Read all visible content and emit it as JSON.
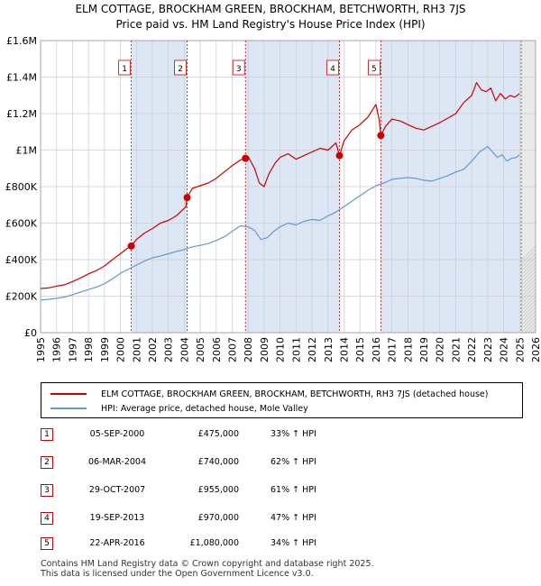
{
  "title_line1": "ELM COTTAGE, BROCKHAM GREEN, BROCKHAM, BETCHWORTH, RH3 7JS",
  "title_line2": "Price paid vs. HM Land Registry's House Price Index (HPI)",
  "colors": {
    "property": "#cc0000",
    "hpi": "#6699cc",
    "shade": "#dde6f4",
    "future": "#e9e9e9",
    "grid": "#cccccc"
  },
  "legend": {
    "property_label": "ELM COTTAGE, BROCKHAM GREEN, BROCKHAM, BETCHWORTH, RH3 7JS (detached house)",
    "hpi_label": "HPI: Average price, detached house, Mole Valley"
  },
  "sales": [
    {
      "num": "1",
      "date": "05-SEP-2000",
      "price": "£475,000",
      "hpi": "33% ↑ HPI"
    },
    {
      "num": "2",
      "date": "06-MAR-2004",
      "price": "£740,000",
      "hpi": "62% ↑ HPI"
    },
    {
      "num": "3",
      "date": "29-OCT-2007",
      "price": "£955,000",
      "hpi": "61% ↑ HPI"
    },
    {
      "num": "4",
      "date": "19-SEP-2013",
      "price": "£970,000",
      "hpi": "47% ↑ HPI"
    },
    {
      "num": "5",
      "date": "22-APR-2016",
      "price": "£1,080,000",
      "hpi": "34% ↑ HPI"
    }
  ],
  "footer_line1": "Contains HM Land Registry data © Crown copyright and database right 2025.",
  "footer_line2": "This data is licensed under the Open Government Licence v3.0.",
  "chart_data": {
    "type": "line",
    "xlim": [
      1995,
      2026
    ],
    "ylim": [
      0,
      1600000
    ],
    "x_ticks": [
      "1995",
      "1996",
      "1997",
      "1998",
      "1999",
      "2000",
      "2001",
      "2002",
      "2003",
      "2004",
      "2005",
      "2006",
      "2007",
      "2008",
      "2009",
      "2010",
      "2011",
      "2012",
      "2013",
      "2014",
      "2015",
      "2016",
      "2017",
      "2018",
      "2019",
      "2020",
      "2021",
      "2022",
      "2023",
      "2024",
      "2025",
      "2026"
    ],
    "y_ticks": [
      {
        "value": 0,
        "label": "£0"
      },
      {
        "value": 200000,
        "label": "£200K"
      },
      {
        "value": 400000,
        "label": "£400K"
      },
      {
        "value": 600000,
        "label": "£600K"
      },
      {
        "value": 800000,
        "label": "£800K"
      },
      {
        "value": 1000000,
        "label": "£1M"
      },
      {
        "value": 1200000,
        "label": "£1.2M"
      },
      {
        "value": 1400000,
        "label": "£1.4M"
      },
      {
        "value": 1600000,
        "label": "£1.6M"
      }
    ],
    "grid": true,
    "future_from": 2025.1,
    "shaded_spans": [
      [
        2000.68,
        2004.18
      ],
      [
        2007.83,
        2013.72
      ],
      [
        2016.31,
        2025.1
      ]
    ],
    "sale_markers": [
      {
        "label": "1",
        "x": 2000.68,
        "y": 475000
      },
      {
        "label": "2",
        "x": 2004.18,
        "y": 740000
      },
      {
        "label": "3",
        "x": 2007.83,
        "y": 955000
      },
      {
        "label": "4",
        "x": 2013.72,
        "y": 970000
      },
      {
        "label": "5",
        "x": 2016.31,
        "y": 1080000
      }
    ],
    "series": [
      {
        "name": "ELM COTTAGE, BROCKHAM GREEN, BROCKHAM, BETCHWORTH, RH3 7JS (detached house)",
        "x": [
          1995,
          1995.5,
          1996,
          1996.5,
          1997,
          1997.5,
          1998,
          1998.5,
          1999,
          1999.5,
          2000,
          2000.4,
          2000.68,
          2001,
          2001.5,
          2002,
          2002.5,
          2003,
          2003.5,
          2004.1,
          2004.18,
          2004.5,
          2005,
          2005.5,
          2006,
          2006.5,
          2007,
          2007.5,
          2007.83,
          2008,
          2008.4,
          2008.7,
          2009,
          2009.3,
          2009.7,
          2010,
          2010.5,
          2011,
          2011.5,
          2012,
          2012.5,
          2013,
          2013.5,
          2013.72,
          2014,
          2014.5,
          2015,
          2015.5,
          2016,
          2016.2,
          2016.31,
          2016.6,
          2017,
          2017.5,
          2018,
          2018.5,
          2019,
          2019.5,
          2020,
          2020.5,
          2021,
          2021.5,
          2022,
          2022.3,
          2022.6,
          2022.9,
          2023.2,
          2023.5,
          2023.8,
          2024.1,
          2024.4,
          2024.7,
          2025
        ],
        "y": [
          242000,
          245000,
          255000,
          262000,
          280000,
          300000,
          322000,
          340000,
          365000,
          400000,
          432000,
          460000,
          475000,
          510000,
          545000,
          570000,
          600000,
          615000,
          640000,
          690000,
          740000,
          790000,
          805000,
          820000,
          845000,
          880000,
          915000,
          945000,
          955000,
          965000,
          900000,
          820000,
          800000,
          870000,
          930000,
          960000,
          980000,
          950000,
          970000,
          990000,
          1010000,
          1000000,
          1040000,
          970000,
          1050000,
          1110000,
          1140000,
          1180000,
          1250000,
          1170000,
          1080000,
          1130000,
          1170000,
          1160000,
          1140000,
          1120000,
          1110000,
          1130000,
          1150000,
          1175000,
          1200000,
          1260000,
          1300000,
          1370000,
          1330000,
          1320000,
          1340000,
          1270000,
          1310000,
          1280000,
          1300000,
          1290000,
          1310000
        ]
      },
      {
        "name": "HPI: Average price, detached house, Mole Valley",
        "x": [
          1995,
          1995.5,
          1996,
          1996.5,
          1997,
          1997.5,
          1998,
          1998.5,
          1999,
          1999.5,
          2000,
          2000.5,
          2001,
          2001.5,
          2002,
          2002.5,
          2003,
          2003.5,
          2004,
          2004.5,
          2005,
          2005.5,
          2006,
          2006.5,
          2007,
          2007.5,
          2008,
          2008.4,
          2008.8,
          2009.2,
          2009.6,
          2010,
          2010.5,
          2011,
          2011.5,
          2012,
          2012.5,
          2013,
          2013.5,
          2014,
          2014.5,
          2015,
          2015.5,
          2016,
          2016.5,
          2017,
          2017.5,
          2018,
          2018.5,
          2019,
          2019.5,
          2020,
          2020.5,
          2021,
          2021.5,
          2022,
          2022.5,
          2023,
          2023.3,
          2023.6,
          2023.9,
          2024.2,
          2024.5,
          2024.8,
          2025
        ],
        "y": [
          180000,
          182000,
          188000,
          195000,
          208000,
          222000,
          236000,
          250000,
          268000,
          295000,
          325000,
          348000,
          370000,
          392000,
          410000,
          420000,
          432000,
          445000,
          455000,
          470000,
          478000,
          488000,
          505000,
          525000,
          555000,
          585000,
          580000,
          560000,
          510000,
          520000,
          555000,
          580000,
          600000,
          590000,
          610000,
          620000,
          615000,
          640000,
          660000,
          690000,
          720000,
          750000,
          780000,
          805000,
          820000,
          840000,
          845000,
          850000,
          845000,
          835000,
          830000,
          845000,
          860000,
          880000,
          895000,
          940000,
          990000,
          1020000,
          990000,
          960000,
          975000,
          940000,
          955000,
          960000,
          975000
        ]
      }
    ]
  }
}
